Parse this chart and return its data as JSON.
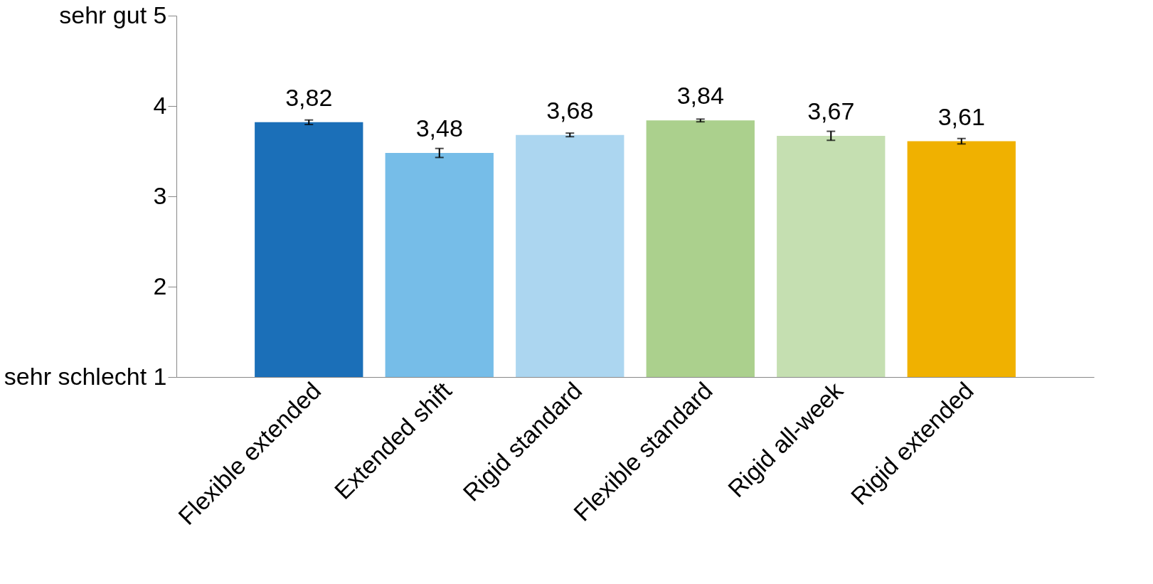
{
  "chart_data": {
    "type": "bar",
    "categories": [
      "Flexible extended",
      "Extended shift",
      "Rigid standard",
      "Flexible standard",
      "Rigid all-week",
      "Rigid extended"
    ],
    "values": [
      3.82,
      3.48,
      3.68,
      3.84,
      3.67,
      3.61
    ],
    "colors": [
      "#1b6fb8",
      "#76bde8",
      "#acd6f0",
      "#abd08d",
      "#c5dfb1",
      "#f0b100"
    ],
    "errors": [
      0.025,
      0.05,
      0.02,
      0.015,
      0.05,
      0.03
    ],
    "value_labels": [
      "3,82",
      "3,48",
      "3,68",
      "3,84",
      "3,67",
      "3,61"
    ],
    "ylim": [
      1,
      5
    ],
    "yticks": [
      {
        "value": 1,
        "label": "sehr schlecht 1"
      },
      2,
      3,
      4,
      {
        "value": 5,
        "label": "sehr gut 5"
      }
    ],
    "grid": false
  }
}
